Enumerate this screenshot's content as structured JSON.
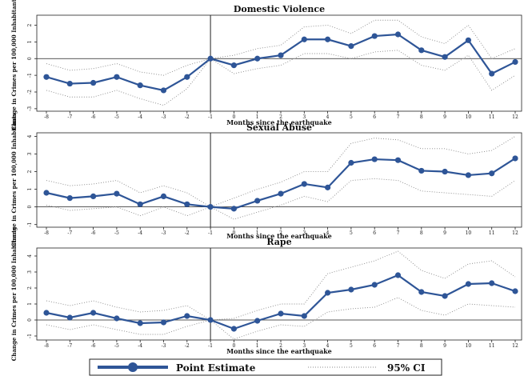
{
  "chart_data": [
    {
      "type": "line",
      "title": "Domestic Violence",
      "xlabel": "Months since the earthquake",
      "ylabel": "Change in Crimes per 100,000 Inhabitants",
      "x": [
        -8,
        -7,
        -6,
        -5,
        -4,
        -3,
        -2,
        -1,
        0,
        1,
        2,
        3,
        4,
        5,
        6,
        7,
        8,
        9,
        10,
        11,
        12
      ],
      "xticks": [
        -8,
        -7,
        -6,
        -5,
        -4,
        -3,
        -2,
        -1,
        0,
        1,
        2,
        3,
        4,
        5,
        6,
        7,
        8,
        9,
        10,
        11,
        12
      ],
      "yticks": [
        -3,
        -2,
        -1,
        0,
        1,
        2
      ],
      "ylim": [
        -3.15,
        2.6
      ],
      "event_x": -1,
      "grid": false,
      "series": [
        {
          "name": "Point Estimate",
          "values": [
            -1.1,
            -1.5,
            -1.45,
            -1.1,
            -1.6,
            -1.9,
            -1.1,
            0,
            -0.4,
            0,
            0.2,
            1.15,
            1.15,
            0.75,
            1.35,
            1.45,
            0.5,
            0.1,
            1.1,
            -0.9,
            -0.2
          ]
        },
        {
          "name": "95% CI",
          "values": [
            -0.3,
            -0.7,
            -0.6,
            -0.3,
            -0.8,
            -1.0,
            -0.4,
            0,
            0.2,
            0.6,
            0.8,
            1.9,
            2.0,
            1.5,
            2.3,
            2.3,
            1.3,
            0.9,
            2.0,
            0.0,
            0.6
          ]
        },
        {
          "name": "95% CI",
          "values": [
            -1.9,
            -2.3,
            -2.3,
            -1.9,
            -2.4,
            -2.8,
            -1.8,
            0,
            -0.9,
            -0.6,
            -0.4,
            0.3,
            0.3,
            0.0,
            0.4,
            0.5,
            -0.4,
            -0.7,
            0.2,
            -1.9,
            -1.0
          ]
        }
      ]
    },
    {
      "type": "line",
      "title": "Sexual Abuse",
      "xlabel": "Months since the earthquake",
      "ylabel": "Change in Crimes per 100,000 Inhabitants",
      "x": [
        -8,
        -7,
        -6,
        -5,
        -4,
        -3,
        -2,
        -1,
        0,
        1,
        2,
        3,
        4,
        5,
        6,
        7,
        8,
        9,
        10,
        11,
        12
      ],
      "xticks": [
        -8,
        -7,
        -6,
        -5,
        -4,
        -3,
        -2,
        -1,
        0,
        1,
        2,
        3,
        4,
        5,
        6,
        7,
        8,
        9,
        10,
        11,
        12
      ],
      "yticks": [
        -1,
        0,
        1,
        2,
        3,
        4
      ],
      "ylim": [
        -1.15,
        4.2
      ],
      "event_x": -1,
      "grid": false,
      "series": [
        {
          "name": "Point Estimate",
          "values": [
            0.8,
            0.5,
            0.6,
            0.75,
            0.15,
            0.6,
            0.15,
            0,
            -0.1,
            0.35,
            0.75,
            1.3,
            1.1,
            2.5,
            2.7,
            2.65,
            2.05,
            2.0,
            1.8,
            1.9,
            2.75
          ]
        },
        {
          "name": "95% CI",
          "values": [
            1.5,
            1.2,
            1.3,
            1.5,
            0.8,
            1.2,
            0.8,
            0,
            0.5,
            1.0,
            1.4,
            2.0,
            2.0,
            3.6,
            3.9,
            3.8,
            3.3,
            3.3,
            3.0,
            3.2,
            4.0
          ]
        },
        {
          "name": "95% CI",
          "values": [
            0.1,
            -0.2,
            -0.1,
            0.0,
            -0.5,
            0.0,
            -0.5,
            0,
            -0.7,
            -0.3,
            0.1,
            0.6,
            0.3,
            1.5,
            1.6,
            1.5,
            0.9,
            0.8,
            0.7,
            0.6,
            1.5
          ]
        }
      ]
    },
    {
      "type": "line",
      "title": "Rape",
      "xlabel": "Months since the earthquake",
      "ylabel": "Change in Crimes per 100,000 Inhabitants",
      "x": [
        -8,
        -7,
        -6,
        -5,
        -4,
        -3,
        -2,
        -1,
        0,
        1,
        2,
        3,
        4,
        5,
        6,
        7,
        8,
        9,
        10,
        11,
        12
      ],
      "xticks": [
        -8,
        -7,
        -6,
        -5,
        -4,
        -3,
        -2,
        -1,
        0,
        1,
        2,
        3,
        4,
        5,
        6,
        7,
        8,
        9,
        10,
        11,
        12
      ],
      "yticks": [
        -1,
        0,
        1,
        2,
        3,
        4
      ],
      "ylim": [
        -1.25,
        4.5
      ],
      "event_x": -1,
      "grid": false,
      "series": [
        {
          "name": "Point Estimate",
          "values": [
            0.45,
            0.15,
            0.45,
            0.1,
            -0.2,
            -0.15,
            0.25,
            0,
            -0.55,
            -0.05,
            0.4,
            0.25,
            1.7,
            1.9,
            2.2,
            2.8,
            1.75,
            1.5,
            2.25,
            2.3,
            1.8
          ]
        },
        {
          "name": "95% CI",
          "values": [
            1.2,
            0.9,
            1.2,
            0.8,
            0.5,
            0.6,
            0.9,
            0,
            0.1,
            0.6,
            1.0,
            1.0,
            2.9,
            3.3,
            3.7,
            4.3,
            3.1,
            2.6,
            3.5,
            3.7,
            2.7
          ]
        },
        {
          "name": "95% CI",
          "values": [
            -0.3,
            -0.6,
            -0.3,
            -0.6,
            -0.9,
            -0.9,
            -0.4,
            0,
            -1.2,
            -0.7,
            -0.3,
            -0.4,
            0.5,
            0.7,
            0.8,
            1.4,
            0.6,
            0.3,
            1.0,
            0.9,
            0.8
          ]
        }
      ]
    }
  ],
  "legend": {
    "point_label": "Point Estimate",
    "ci_label": "95% CI",
    "placement": "bottom"
  },
  "colors": {
    "line": "#2e5597",
    "ci": "#888888",
    "axis": "#222222"
  }
}
